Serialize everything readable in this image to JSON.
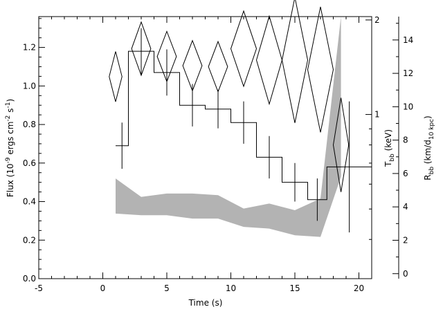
{
  "chart_data": {
    "type": "line",
    "xlabel": "Time (s)",
    "ylabel_left": {
      "main": "Flux (10",
      "sup1": "-9",
      "mid": " ergs cm",
      "sup2": "-2",
      "mid2": " s",
      "sup3": "-1",
      "end": ")"
    },
    "ylabel_right_T": {
      "main": "T",
      "sub": "bb",
      "end": " (keV)"
    },
    "ylabel_right_R": {
      "main": "R",
      "sub1": "bb",
      "mid": " (km/d",
      "sub2": "10 kpc",
      "end": ")"
    },
    "xlim": [
      -5,
      21
    ],
    "ylim_flux": [
      0,
      1.36
    ],
    "ylim_temperature_log": [
      0.3,
      2.05
    ],
    "ylim_radius": [
      -0.3,
      15.4
    ],
    "x_ticks": [
      "-5",
      "0",
      "5",
      "10",
      "15",
      "20"
    ],
    "y_ticks_flux": [
      "0.0",
      "0.2",
      "0.4",
      "0.6",
      "0.8",
      "1.0",
      "1.2"
    ],
    "y_ticks_T": [
      "1",
      "2"
    ],
    "y_ticks_R": [
      "0",
      "2",
      "4",
      "6",
      "8",
      "10",
      "12",
      "14"
    ],
    "series": [
      {
        "kind": "flux-histogram",
        "bins": [
          {
            "x0": 1,
            "x1": 2,
            "y": 0.69,
            "err": 0.12
          },
          {
            "x0": 2,
            "x1": 4,
            "y": 1.18,
            "err": 0.12
          },
          {
            "x0": 4,
            "x1": 6,
            "y": 1.07,
            "err": 0.12
          },
          {
            "x0": 6,
            "x1": 8,
            "y": 0.9,
            "err": 0.11
          },
          {
            "x0": 8,
            "x1": 10,
            "y": 0.88,
            "err": 0.1
          },
          {
            "x0": 10,
            "x1": 12,
            "y": 0.81,
            "err": 0.11
          },
          {
            "x0": 12,
            "x1": 14,
            "y": 0.63,
            "err": 0.11
          },
          {
            "x0": 14,
            "x1": 16,
            "y": 0.5,
            "err": 0.1
          },
          {
            "x0": 16,
            "x1": 17.5,
            "y": 0.41,
            "err": 0.11
          },
          {
            "x0": 17.5,
            "x1": 21,
            "y": 0.58,
            "err": 0.34
          }
        ]
      },
      {
        "kind": "temperature-diamonds",
        "points": [
          {
            "x": 1,
            "y": 1.32,
            "dx": 0.5,
            "dy": 0.08
          },
          {
            "x": 3,
            "y": 1.62,
            "dx": 0.75,
            "dy": 0.085
          },
          {
            "x": 5,
            "y": 1.53,
            "dx": 0.75,
            "dy": 0.08
          },
          {
            "x": 7,
            "y": 1.43,
            "dx": 0.75,
            "dy": 0.08
          },
          {
            "x": 9,
            "y": 1.42,
            "dx": 0.75,
            "dy": 0.08
          },
          {
            "x": 11,
            "y": 1.62,
            "dx": 1.0,
            "dy": 0.12
          },
          {
            "x": 13,
            "y": 1.49,
            "dx": 1.0,
            "dy": 0.14
          },
          {
            "x": 15,
            "y": 1.49,
            "dx": 1.0,
            "dy": 0.2
          },
          {
            "x": 17,
            "y": 1.39,
            "dx": 1.0,
            "dy": 0.2
          },
          {
            "x": 18.6,
            "y": 0.8,
            "dx": 0.6,
            "dy": 0.15
          }
        ]
      },
      {
        "kind": "radius-band",
        "points": [
          {
            "x": 1,
            "lo": 3.6,
            "hi": 5.7
          },
          {
            "x": 3,
            "lo": 3.5,
            "hi": 4.6
          },
          {
            "x": 5,
            "lo": 3.5,
            "hi": 4.8
          },
          {
            "x": 7,
            "lo": 3.3,
            "hi": 4.8
          },
          {
            "x": 9,
            "lo": 3.3,
            "hi": 4.7
          },
          {
            "x": 11,
            "lo": 2.8,
            "hi": 3.9
          },
          {
            "x": 13,
            "lo": 2.7,
            "hi": 4.2
          },
          {
            "x": 15,
            "lo": 2.3,
            "hi": 3.8
          },
          {
            "x": 17,
            "lo": 2.2,
            "hi": 4.5
          },
          {
            "x": 18.6,
            "lo": 5.8,
            "hi": 15.4
          }
        ]
      }
    ],
    "grid": false,
    "colors": {
      "axes": "#000000",
      "band": "#b3b3b3",
      "background": "#ffffff"
    }
  }
}
